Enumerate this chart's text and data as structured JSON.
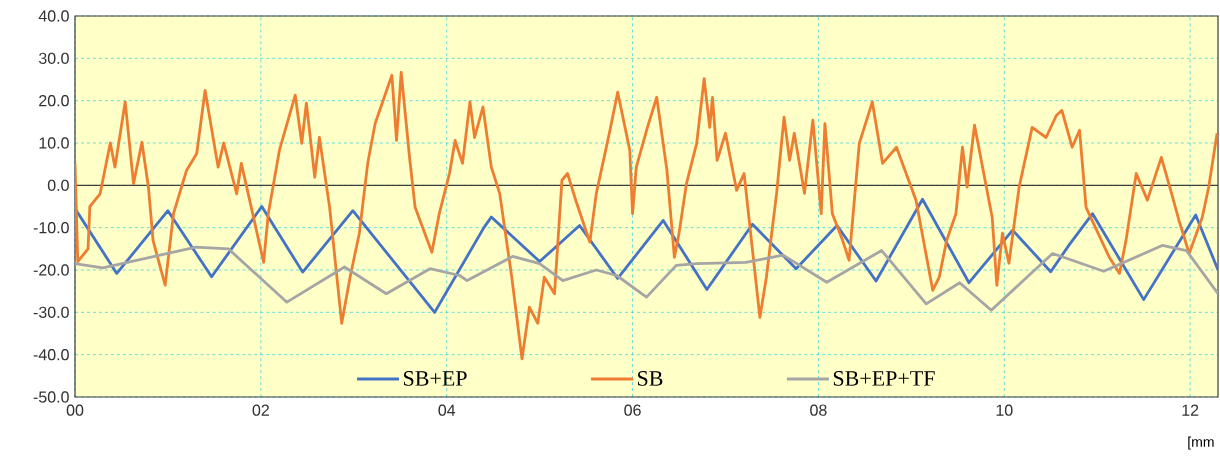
{
  "chart_data": {
    "type": "line",
    "xlabel": "[mm",
    "xlim": [
      0,
      12.3
    ],
    "ylim": [
      -50,
      40
    ],
    "xticks": [
      {
        "value": 0,
        "label": "00"
      },
      {
        "value": 2,
        "label": "02"
      },
      {
        "value": 4,
        "label": "04"
      },
      {
        "value": 6,
        "label": "06"
      },
      {
        "value": 8,
        "label": "08"
      },
      {
        "value": 10,
        "label": "10"
      },
      {
        "value": 12,
        "label": "12"
      }
    ],
    "yticks": [
      {
        "value": 40,
        "label": "40.0"
      },
      {
        "value": 30,
        "label": "30.0"
      },
      {
        "value": 20,
        "label": "20.0"
      },
      {
        "value": 10,
        "label": "10.0"
      },
      {
        "value": 0,
        "label": "0.0"
      },
      {
        "value": -10,
        "label": "-10.0"
      },
      {
        "value": -20,
        "label": "-20.0"
      },
      {
        "value": -30,
        "label": "-30.0"
      },
      {
        "value": -40,
        "label": "-40.0"
      },
      {
        "value": -50,
        "label": "-50.0"
      }
    ],
    "grid": true,
    "legend": "bottom",
    "marker": "none",
    "line_style": "solid",
    "ref_lines": [
      {
        "axis": "y",
        "value": 0,
        "color": "#404040"
      }
    ],
    "series": [
      {
        "name": "SB+EP",
        "color": "#4472c4",
        "x": [
          0,
          0.45,
          1.0,
          1.47,
          2.01,
          2.45,
          2.99,
          3.87,
          4.4,
          4.48,
          5.0,
          5.43,
          5.84,
          6.33,
          6.8,
          7.29,
          7.76,
          8.2,
          8.62,
          9.12,
          9.62,
          10.09,
          10.5,
          10.7,
          10.95,
          11.5,
          12.06,
          12.3
        ],
        "values": [
          -5.5,
          -20.8,
          -6,
          -21.6,
          -5,
          -20.5,
          -6,
          -30,
          -10,
          -7.5,
          -18,
          -9.5,
          -22,
          -8.3,
          -24.6,
          -9.2,
          -19.7,
          -9.5,
          -22.6,
          -3.3,
          -23,
          -10.6,
          -20.4,
          -14,
          -6.7,
          -27,
          -7,
          -20
        ]
      },
      {
        "name": "SB",
        "color": "#ed7d31",
        "x": [
          0,
          0.03,
          0.14,
          0.16,
          0.27,
          0.38,
          0.43,
          0.54,
          0.63,
          0.72,
          0.79,
          0.84,
          0.97,
          1.06,
          1.2,
          1.31,
          1.4,
          1.54,
          1.6,
          1.74,
          1.79,
          2.03,
          2.08,
          2.2,
          2.37,
          2.44,
          2.49,
          2.58,
          2.63,
          2.74,
          2.87,
          2.96,
          3.06,
          3.15,
          3.23,
          3.41,
          3.46,
          3.51,
          3.6,
          3.66,
          3.84,
          3.92,
          4.03,
          4.09,
          4.17,
          4.25,
          4.3,
          4.39,
          4.48,
          4.57,
          4.7,
          4.81,
          4.89,
          4.98,
          5.05,
          5.16,
          5.24,
          5.3,
          5.4,
          5.54,
          5.61,
          5.75,
          5.84,
          5.97,
          6.0,
          6.04,
          6.16,
          6.26,
          6.37,
          6.45,
          6.5,
          6.58,
          6.69,
          6.77,
          6.83,
          6.86,
          6.91,
          7.0,
          7.12,
          7.2,
          7.37,
          7.44,
          7.55,
          7.63,
          7.69,
          7.74,
          7.85,
          7.94,
          8.03,
          8.07,
          8.15,
          8.26,
          8.33,
          8.44,
          8.58,
          8.69,
          8.84,
          9.05,
          9.23,
          9.3,
          9.38,
          9.48,
          9.55,
          9.6,
          9.68,
          9.87,
          9.92,
          9.98,
          10.05,
          10.16,
          10.3,
          10.45,
          10.56,
          10.62,
          10.73,
          10.81,
          10.88,
          11.13,
          11.24,
          11.31,
          11.42,
          11.54,
          11.69,
          11.8,
          11.88,
          11.99,
          12.13,
          12.2,
          12.29
        ],
        "values": [
          5.2,
          -18,
          -15,
          -5,
          -2,
          10,
          4.3,
          19.7,
          0.4,
          10.2,
          -0.4,
          -13,
          -23.6,
          -6.7,
          3.5,
          7.5,
          22.4,
          4.3,
          10,
          -2,
          5.2,
          -18.2,
          -6.7,
          8.3,
          21.3,
          9.9,
          19.4,
          1.9,
          11.3,
          -5.2,
          -32.6,
          -21.7,
          -11.3,
          5.2,
          14.6,
          26,
          10.6,
          26.7,
          6.6,
          -5.2,
          -15.8,
          -6.7,
          2.8,
          10.6,
          5.2,
          19.7,
          11.3,
          18.5,
          4.3,
          -1.9,
          -21.7,
          -41,
          -28.8,
          -32.6,
          -21.7,
          -25.6,
          1.2,
          2.8,
          -4.3,
          -13.4,
          -1.9,
          12.3,
          22,
          8.3,
          -6.7,
          4.3,
          13.7,
          20.8,
          3.5,
          -17,
          -11.3,
          0.4,
          9.9,
          25.2,
          13.7,
          20.8,
          5.9,
          12.3,
          -1.2,
          2.8,
          -31.2,
          -21.7,
          -1.9,
          16.1,
          5.9,
          12.3,
          -1.9,
          15.4,
          -6.7,
          14.6,
          -6.7,
          -13,
          -17.7,
          9.9,
          19.7,
          5.2,
          9,
          -3.5,
          -24.8,
          -21.7,
          -13,
          -6.7,
          9,
          -0.4,
          14.2,
          -7.6,
          -23.6,
          -11.3,
          -18.4,
          -0.4,
          13.7,
          11.3,
          16.5,
          17.7,
          9,
          13,
          -5.2,
          -17,
          -20.8,
          -13,
          2.8,
          -3.5,
          6.6,
          -1.9,
          -8.3,
          -16.1,
          -7.6,
          -0.4,
          12.3
        ]
      },
      {
        "name": "SB+EP+TF",
        "color": "#a5a5a5",
        "x": [
          0,
          0.3,
          1.3,
          1.65,
          2.28,
          2.9,
          3.35,
          3.82,
          4.14,
          4.22,
          4.71,
          5.0,
          5.25,
          5.61,
          5.83,
          6.15,
          6.47,
          6.69,
          7.22,
          7.62,
          8.09,
          8.68,
          9.16,
          9.52,
          9.86,
          10.52,
          11.07,
          11.7,
          11.96,
          12.3
        ],
        "values": [
          -18.5,
          -19.5,
          -14.6,
          -15,
          -27.6,
          -19.3,
          -25.6,
          -19.7,
          -21.3,
          -22.5,
          -16.8,
          -18.5,
          -22.5,
          -20,
          -21.3,
          -26.4,
          -18.9,
          -18.5,
          -18.2,
          -16.5,
          -22.9,
          -15.4,
          -28,
          -23,
          -29.5,
          -16.1,
          -20.3,
          -14.2,
          -15.4,
          -25.6
        ]
      }
    ]
  }
}
